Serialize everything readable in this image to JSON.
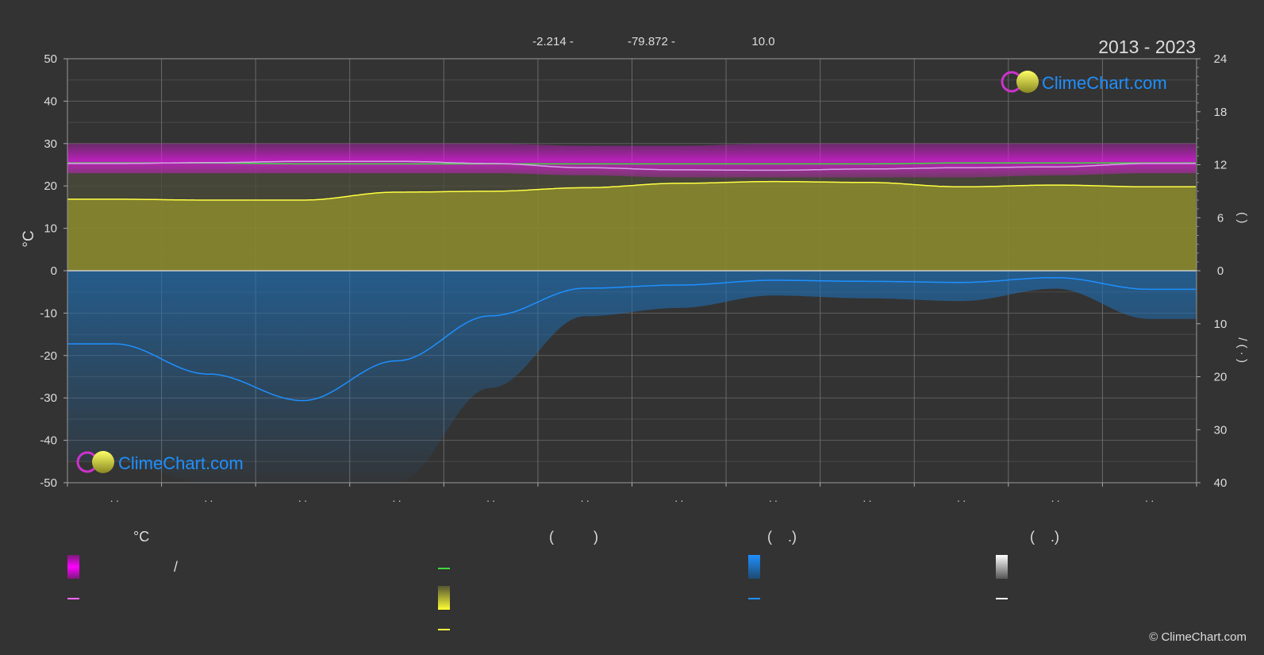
{
  "header": {
    "coord_lat": "-2.214 -",
    "coord_lon": "-79.872 -",
    "elevation": "10.0",
    "period": "2013 - 2023"
  },
  "logo": {
    "text": "ClimeChart.com"
  },
  "copyright": "© ClimeChart.com",
  "colors": {
    "background": "#333333",
    "grid": "#666666",
    "temperature_band": "#e21ae2",
    "daylight_band": "#cccc33",
    "precip_band": "#1e6fb5",
    "daylight_line": "#3ddc3d",
    "sunshine_line": "#ffff44",
    "mean_temp_line": "#ff66ff",
    "precip_line": "#1e90ff",
    "snow_line": "#ffffff",
    "logo": "#1e90ff"
  },
  "chart_data": {
    "type": "area",
    "x_tick_labels": [
      ". .",
      ". .",
      ". .",
      ". .",
      ". .",
      ". .",
      ". .",
      ". .",
      ". .",
      ". .",
      ". .",
      ". ."
    ],
    "ylabel_left": "°C",
    "ylim_left": [
      -50,
      50
    ],
    "yticks_left": [
      50,
      40,
      30,
      20,
      10,
      0,
      -10,
      -20,
      -30,
      -40,
      -50
    ],
    "ylabel_right_top": "(   )",
    "ylim_right_top": [
      0,
      24
    ],
    "yticks_right_top": [
      24,
      18,
      12,
      6,
      0
    ],
    "ylabel_right_bottom": "/   (  ·  )",
    "ylim_right_bottom": [
      0,
      40
    ],
    "yticks_right_bottom": [
      0,
      10,
      20,
      30,
      40
    ],
    "grid": true,
    "series": [
      {
        "key": "temp_max_band",
        "values": [
          30,
          30,
          30,
          30,
          30,
          29.5,
          29.5,
          30,
          30,
          30,
          30,
          30
        ]
      },
      {
        "key": "temp_min_band",
        "values": [
          23,
          23,
          23,
          23,
          23,
          22.5,
          22,
          22,
          22,
          22,
          22.5,
          23
        ]
      },
      {
        "key": "daylight_hours",
        "values": [
          12.2,
          12.2,
          12.1,
          12.1,
          12.1,
          12.1,
          12.1,
          12.1,
          12.1,
          12.2,
          12.2,
          12.2
        ]
      },
      {
        "key": "mean_temperature",
        "values": [
          25.3,
          25.5,
          25.8,
          25.8,
          25.3,
          24.3,
          23.8,
          23.7,
          24.0,
          24.3,
          24.5,
          25.3
        ]
      },
      {
        "key": "sunshine_hours",
        "values": [
          8.1,
          8.0,
          8.0,
          8.9,
          9.0,
          9.4,
          9.9,
          10.1,
          10.0,
          9.5,
          9.7,
          9.5
        ]
      },
      {
        "key": "precipitation_mm",
        "values": [
          13.8,
          19.5,
          24.5,
          17.0,
          8.5,
          3.3,
          2.7,
          1.8,
          2.0,
          2.2,
          1.3,
          3.5
        ]
      }
    ]
  },
  "legend": {
    "col1_header": "°C",
    "col1_item1_text": "/",
    "col2_header": "(          )",
    "col3_header": "(    .)",
    "col4_header": "(    .)"
  }
}
